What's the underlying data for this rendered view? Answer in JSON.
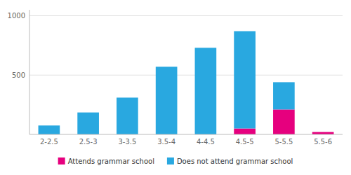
{
  "chart_data": {
    "type": "bar",
    "stacked": true,
    "categories": [
      "2-2.5",
      "2.5-3",
      "3-3.5",
      "3.5-4",
      "4-4.5",
      "4.5-5",
      "5-5.5",
      "5.5-6"
    ],
    "series": [
      {
        "name": "Attends grammar school",
        "color": "#e6007e",
        "values": [
          0,
          0,
          0,
          0,
          0,
          50,
          210,
          20
        ]
      },
      {
        "name": "Does not attend grammar school",
        "color": "#29a8e0",
        "values": [
          75,
          185,
          310,
          570,
          730,
          820,
          230,
          0
        ]
      }
    ],
    "ylim": [
      0,
      1050
    ],
    "yticks": [
      500,
      1000
    ],
    "grid": true,
    "legend": "bottom"
  }
}
